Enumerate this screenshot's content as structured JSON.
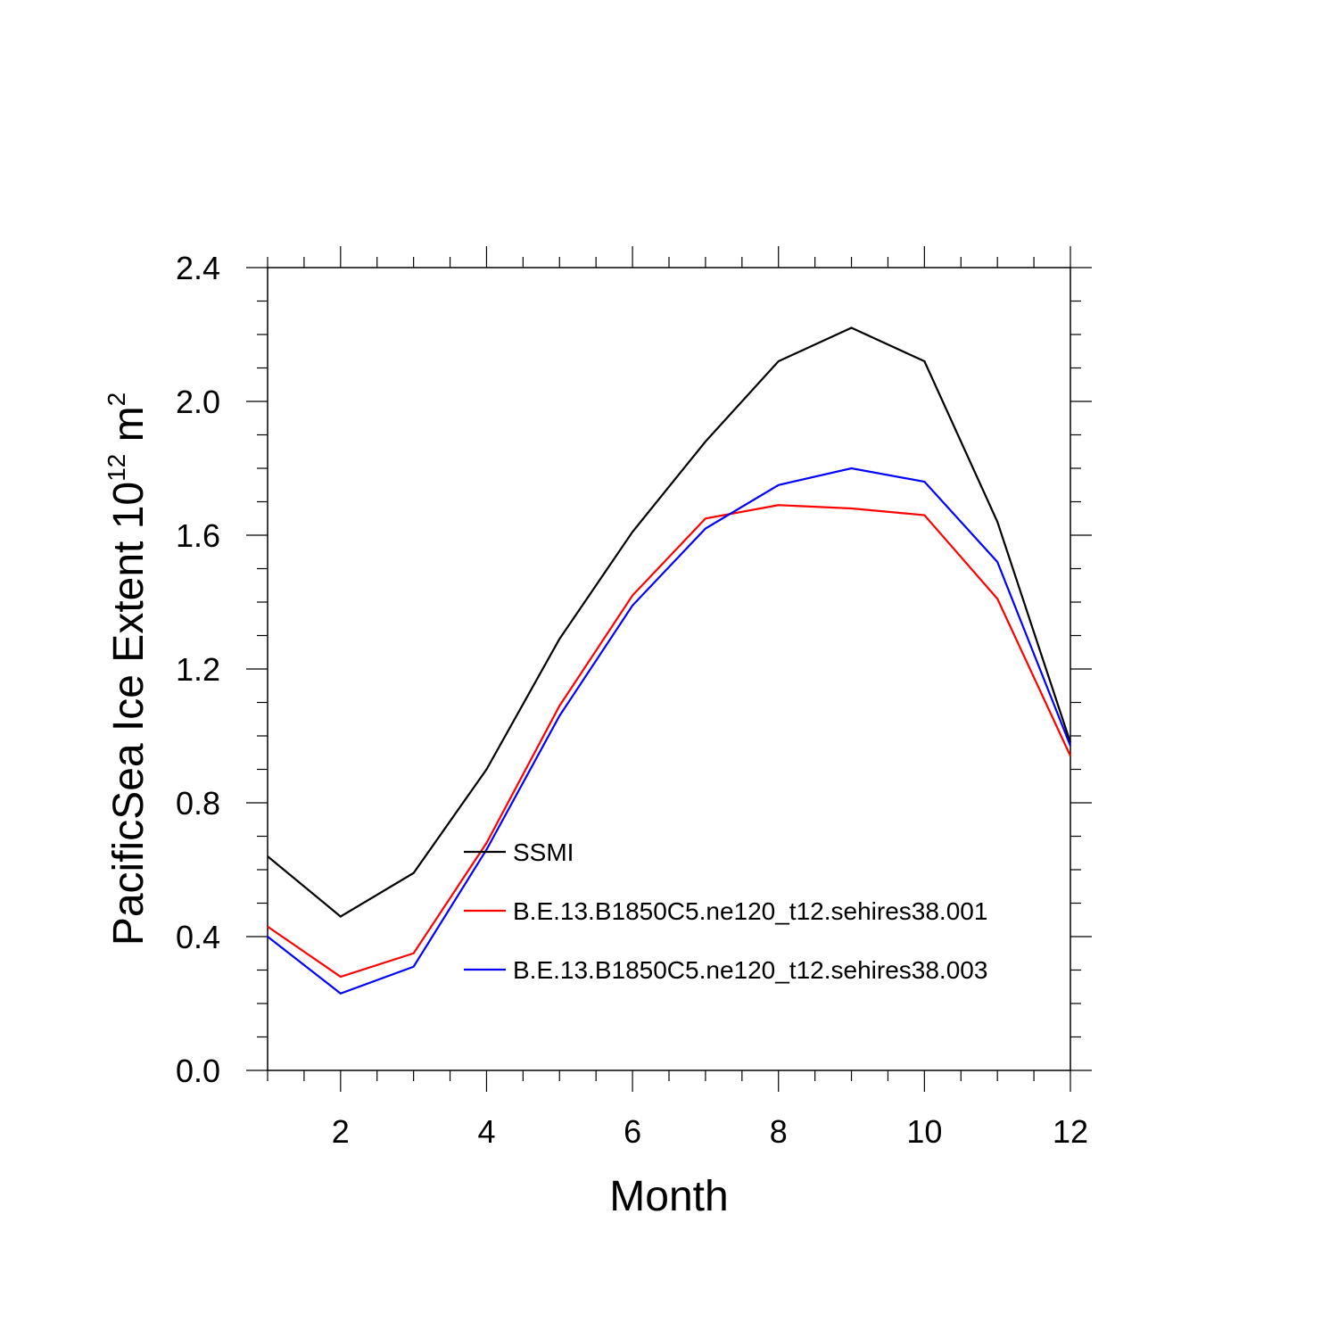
{
  "chart_data": {
    "type": "line",
    "title": "",
    "xlabel": "Month",
    "ylabel_main": "PacificSea Ice Extent 10",
    "ylabel_exp": "12",
    "ylabel_unit": " m",
    "ylabel_unit_exp": "2",
    "xlim": [
      1,
      12
    ],
    "ylim": [
      0.0,
      2.4
    ],
    "x": [
      1,
      2,
      3,
      4,
      5,
      6,
      7,
      8,
      9,
      10,
      11,
      12
    ],
    "xticks": [
      2,
      4,
      6,
      8,
      10,
      12
    ],
    "xtick_labels": [
      "2",
      "4",
      "6",
      "8",
      "10",
      "12"
    ],
    "yticks": [
      0.0,
      0.4,
      0.8,
      1.2,
      1.6,
      2.0,
      2.4
    ],
    "ytick_labels": [
      "0.0",
      "0.4",
      "0.8",
      "1.2",
      "1.6",
      "2.0",
      "2.4"
    ],
    "grid": false,
    "legend_position": "bottom-center",
    "series": [
      {
        "name": "SSMI",
        "color": "#000000",
        "values": [
          0.64,
          0.46,
          0.59,
          0.9,
          1.29,
          1.61,
          1.88,
          2.12,
          2.22,
          2.12,
          1.64,
          0.98
        ]
      },
      {
        "name": "B.E.13.B1850C5.ne120_t12.sehires38.001",
        "color": "#ff0000",
        "values": [
          0.43,
          0.28,
          0.35,
          0.68,
          1.09,
          1.42,
          1.65,
          1.69,
          1.68,
          1.66,
          1.41,
          0.94
        ]
      },
      {
        "name": "B.E.13.B1850C5.ne120_t12.sehires38.003",
        "color": "#0000ff",
        "values": [
          0.4,
          0.23,
          0.31,
          0.66,
          1.06,
          1.39,
          1.62,
          1.75,
          1.8,
          1.76,
          1.52,
          0.97
        ]
      }
    ]
  }
}
